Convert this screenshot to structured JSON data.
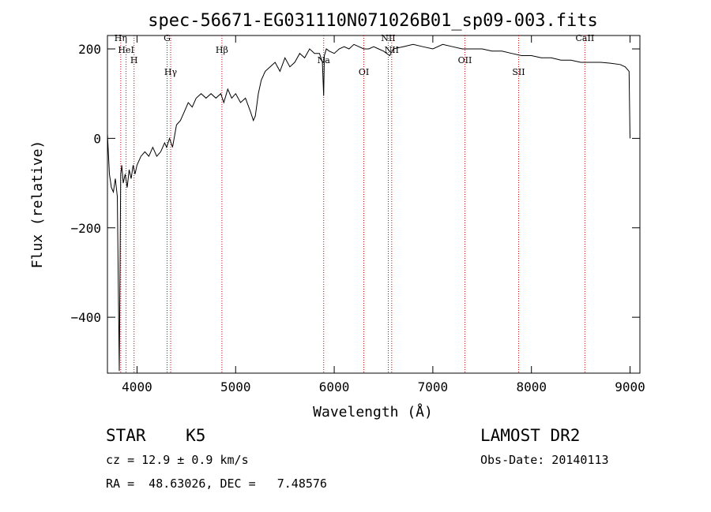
{
  "chart_data": {
    "type": "line",
    "title": "spec-56671-EG031110N071026B01_sp09-003.fits",
    "xlabel": "Wavelength (Å)",
    "ylabel": "Flux (relative)",
    "xlim": [
      3700,
      9100
    ],
    "ylim": [
      -525,
      230
    ],
    "x_ticks": [
      4000,
      5000,
      6000,
      7000,
      8000,
      9000
    ],
    "y_ticks": [
      -400,
      -200,
      0,
      200
    ],
    "grid": false,
    "series": [
      {
        "x": [
          3700,
          3720,
          3740,
          3760,
          3780,
          3800,
          3820,
          3835,
          3845,
          3860,
          3880,
          3900,
          3920,
          3940,
          3960,
          3980,
          4000,
          4040,
          4080,
          4120,
          4160,
          4200,
          4240,
          4280,
          4300,
          4330,
          4360,
          4400,
          4440,
          4480,
          4520,
          4560,
          4600,
          4650,
          4700,
          4750,
          4800,
          4850,
          4880,
          4920,
          4960,
          5000,
          5050,
          5100,
          5150,
          5180,
          5200,
          5230,
          5260,
          5300,
          5350,
          5400,
          5450,
          5500,
          5550,
          5600,
          5650,
          5700,
          5750,
          5800,
          5850,
          5880,
          5893,
          5900,
          5920,
          5950,
          6000,
          6050,
          6100,
          6150,
          6200,
          6250,
          6300,
          6350,
          6400,
          6450,
          6500,
          6563,
          6600,
          6700,
          6800,
          6900,
          7000,
          7100,
          7200,
          7300,
          7400,
          7500,
          7600,
          7700,
          7800,
          7900,
          8000,
          8100,
          8200,
          8300,
          8400,
          8500,
          8600,
          8700,
          8800,
          8900,
          8950,
          8990,
          9000
        ],
        "y": [
          10,
          -80,
          -110,
          -120,
          -90,
          -130,
          -520,
          -80,
          -60,
          -100,
          -80,
          -110,
          -70,
          -90,
          -60,
          -80,
          -60,
          -40,
          -30,
          -40,
          -20,
          -40,
          -30,
          -10,
          -20,
          0,
          -20,
          30,
          40,
          60,
          80,
          70,
          90,
          100,
          90,
          100,
          90,
          100,
          80,
          110,
          90,
          100,
          80,
          90,
          60,
          40,
          50,
          100,
          130,
          150,
          160,
          170,
          150,
          180,
          160,
          170,
          190,
          180,
          200,
          190,
          190,
          170,
          95,
          185,
          200,
          195,
          190,
          200,
          205,
          200,
          210,
          205,
          200,
          200,
          205,
          200,
          195,
          185,
          200,
          205,
          210,
          205,
          200,
          210,
          205,
          200,
          200,
          200,
          195,
          195,
          190,
          185,
          185,
          180,
          180,
          175,
          175,
          170,
          170,
          170,
          168,
          165,
          160,
          150,
          0
        ]
      }
    ],
    "lines": [
      {
        "label": "Hη",
        "x": 3835
      },
      {
        "label": "HeI",
        "x": 3889
      },
      {
        "label": "H",
        "x": 3970
      },
      {
        "label": "Hγ",
        "x": 4341
      },
      {
        "label": "G",
        "x": 4305
      },
      {
        "label": "Hβ",
        "x": 4861
      },
      {
        "label": "Na",
        "x": 5893
      },
      {
        "label": "OI",
        "x": 6300
      },
      {
        "label": "NII",
        "x": 6548
      },
      {
        "label": "NII",
        "x": 6583
      },
      {
        "label": "OII",
        "x": 7325
      },
      {
        "label": "SII",
        "x": 7870
      },
      {
        "label": "CaII",
        "x": 8542
      }
    ]
  },
  "info": {
    "class_line": "STAR    K5",
    "survey": "LAMOST DR2",
    "cz": "cz = 12.9 ± 0.9 km/s",
    "obs_date": "Obs-Date: 20140113",
    "radec": "RA =  48.63026, DEC =   7.48576"
  }
}
